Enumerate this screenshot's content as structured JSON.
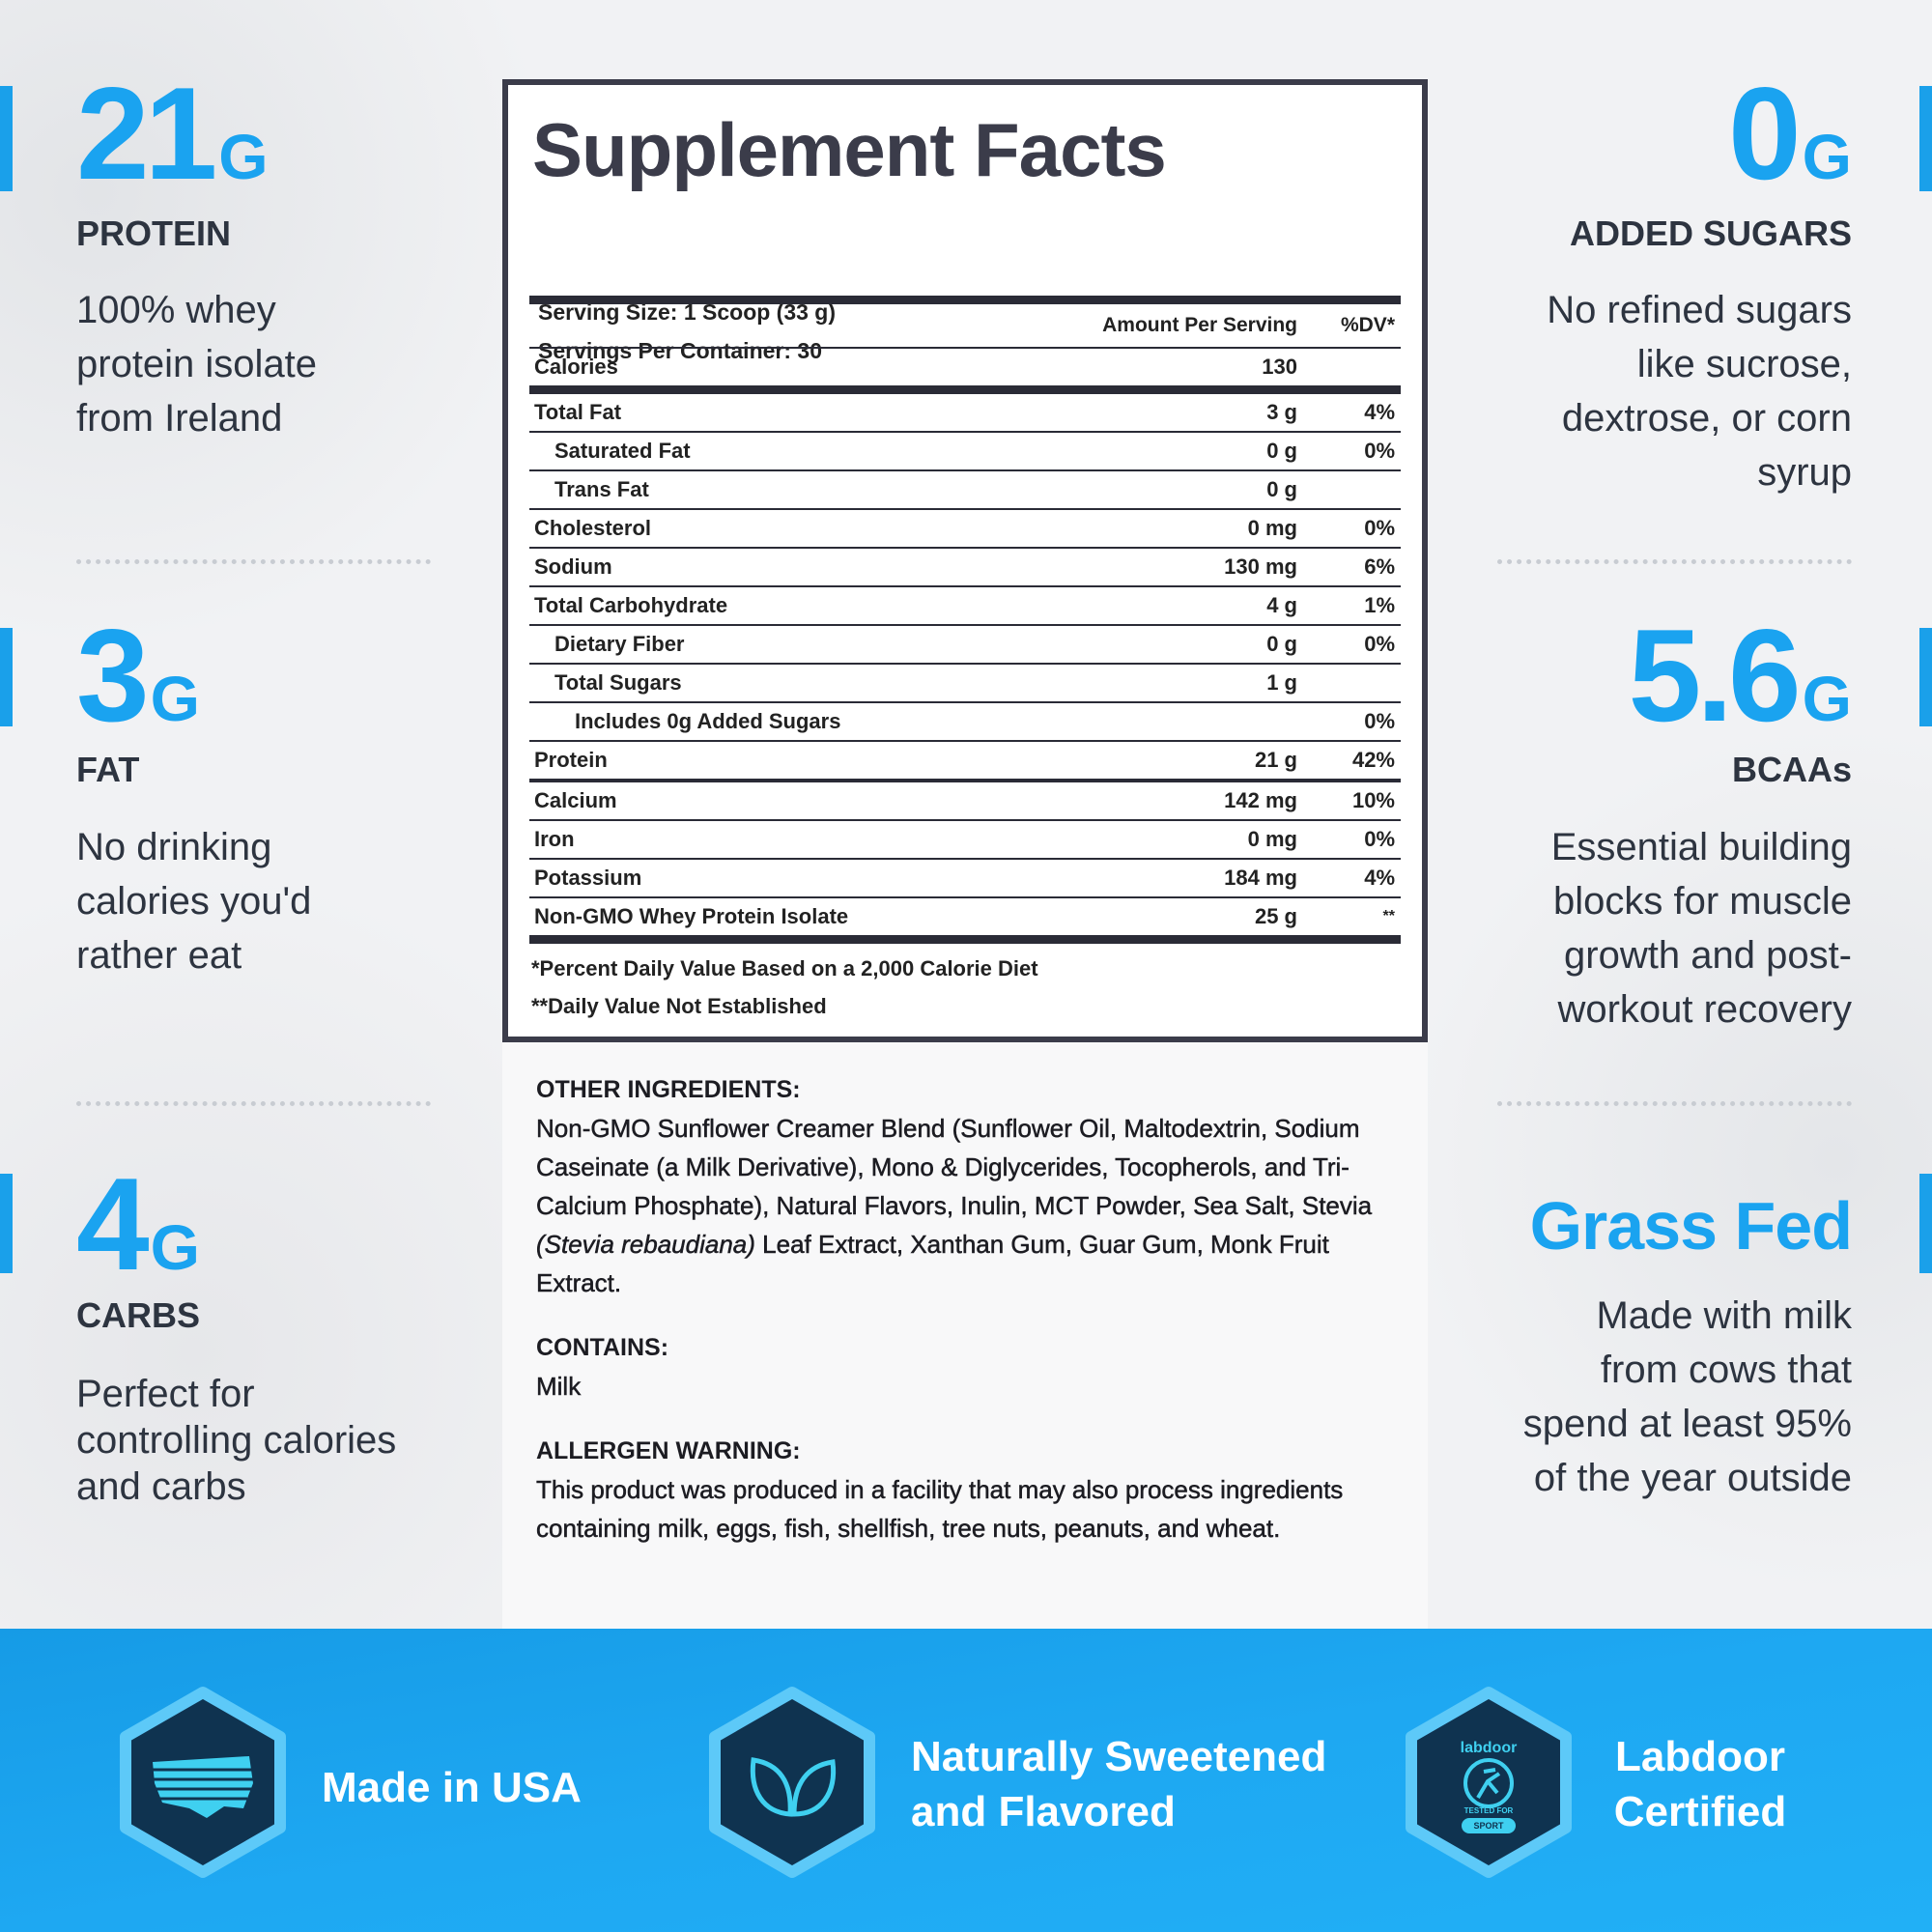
{
  "features_left": [
    {
      "value": "21",
      "unit": "G",
      "label": "PROTEIN",
      "description": [
        "100% whey",
        "protein isolate",
        "from Ireland"
      ]
    },
    {
      "value": "3",
      "unit": "G",
      "label": "FAT",
      "description": [
        "No drinking",
        "calories you'd",
        "rather eat"
      ]
    },
    {
      "value": "4",
      "unit": "G",
      "label": "CARBS",
      "description": [
        "Perfect for",
        "controlling calories",
        "and carbs"
      ]
    }
  ],
  "features_right": [
    {
      "value": "0",
      "unit": "G",
      "label": "ADDED SUGARS",
      "description": [
        "No refined sugars",
        "like sucrose,",
        "dextrose, or corn",
        "syrup"
      ]
    },
    {
      "value": "5.6",
      "unit": "G",
      "label": "BCAAs",
      "description": [
        "Essential building",
        "blocks for muscle",
        "growth and post-",
        "workout recovery"
      ]
    },
    {
      "value": "Grass Fed",
      "description": [
        "Made with milk",
        "from cows that",
        "spend at least 95%",
        "of the year outside"
      ]
    }
  ],
  "supplement_facts": {
    "title": "Supplement Facts",
    "serving_size": "Serving Size: 1 Scoop (33 g)",
    "servings_per_container": "Servings Per Container: 30",
    "column_headers": [
      "Amount Per Serving",
      "%DV*"
    ],
    "sections": [
      {
        "rows": [
          {
            "name": "Calories",
            "amount": "130"
          }
        ]
      },
      {
        "rows": [
          {
            "name": "Total Fat",
            "amount": "3 g",
            "dv": "4%",
            "sub": [
              {
                "name": "Saturated Fat",
                "amount": "0 g",
                "dv": "0%"
              },
              {
                "name": "Trans Fat",
                "amount": "0 g"
              }
            ]
          },
          {
            "name": "Cholesterol",
            "amount": "0 mg",
            "dv": "0%"
          },
          {
            "name": "Sodium",
            "amount": "130 mg",
            "dv": "6%"
          },
          {
            "name": "Total Carbohydrate",
            "amount": "4 g",
            "dv": "1%",
            "sub": [
              {
                "name": "Dietary Fiber",
                "amount": "0 g",
                "dv": "0%"
              },
              {
                "name": "Total Sugars",
                "amount": "1 g",
                "sub": [
                  {
                    "name": "Includes 0g Added Sugars",
                    "dv": "0%"
                  }
                ]
              }
            ]
          },
          {
            "name": "Protein",
            "amount": "21 g",
            "dv": "42%"
          }
        ]
      },
      {
        "rows": [
          {
            "name": "Calcium",
            "amount": "142 mg",
            "dv": "10%"
          },
          {
            "name": "Iron",
            "amount": "0 mg",
            "dv": "0%"
          },
          {
            "name": "Potassium",
            "amount": "184 mg",
            "dv": "4%"
          },
          {
            "name": "Non-GMO Whey Protein Isolate",
            "amount": "25 g",
            "dv": "**"
          }
        ]
      }
    ],
    "footnotes": [
      "*Percent Daily Value Based on a 2,000 Calorie Diet",
      "**Daily Value Not Established"
    ]
  },
  "ingredients": [
    {
      "heading": "OTHER INGREDIENTS:",
      "parts": [
        {
          "text": "Non-GMO Sunflower Creamer Blend (Sunflower Oil, Maltodextrin, Sodium Caseinate (a Milk Derivative), Mono & Diglycerides, Tocopherols, and Tri-Calcium Phosphate), Natural Flavors, Inulin, MCT Powder, Sea Salt, Stevia "
        },
        {
          "text": "(Stevia rebaudiana)",
          "style": "italic"
        },
        {
          "text": " Leaf Extract, Xanthan Gum, Guar Gum, Monk Fruit Extract."
        }
      ]
    },
    {
      "heading": "CONTAINS:",
      "parts": [
        {
          "text": "Milk"
        }
      ]
    },
    {
      "heading": "ALLERGEN WARNING:",
      "parts": [
        {
          "text": "This product was produced in a facility that may also process ingredients containing milk, eggs, fish, shellfish, tree nuts, peanuts, and wheat."
        }
      ]
    }
  ],
  "badges": [
    {
      "label": [
        "Made in USA"
      ]
    },
    {
      "label": [
        "Naturally Sweetened",
        "and Flavored"
      ]
    },
    {
      "label": [
        "Labdoor",
        "Certified"
      ],
      "icon_text": [
        "labdoor",
        "TESTED FOR",
        "SPORT"
      ]
    }
  ]
}
